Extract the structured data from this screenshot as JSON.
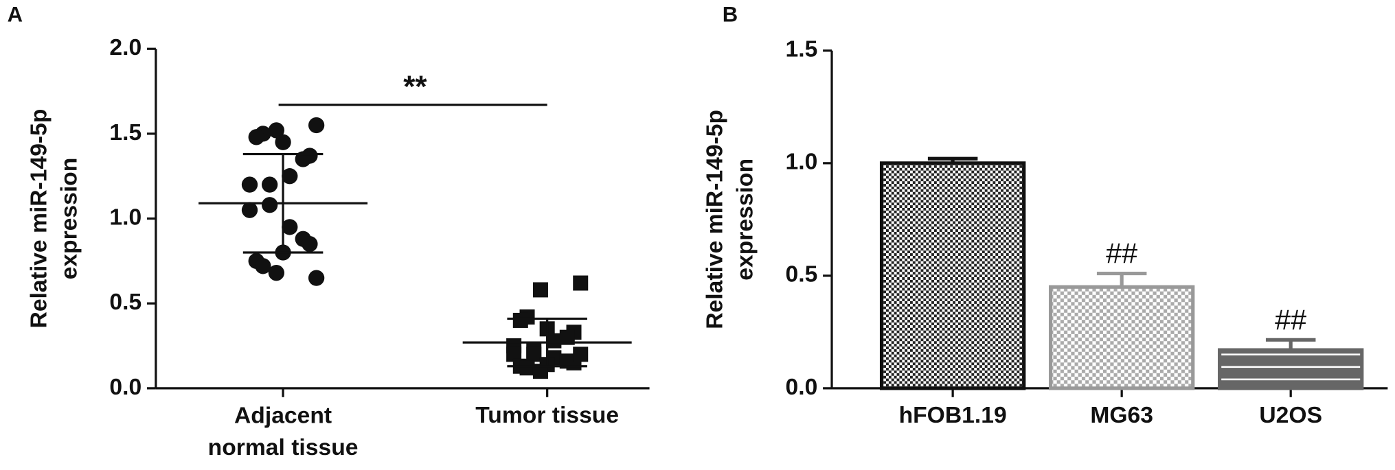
{
  "chart_data": [
    {
      "type": "dot",
      "panel": "A",
      "ylabel": [
        "Relative miR-149-5p",
        "expression"
      ],
      "categories": [
        "Adjacent normal tissue",
        "Tumor tissue"
      ],
      "markers": [
        "circle",
        "square"
      ],
      "color": "#111111",
      "groups": [
        {
          "values": [
            1.55,
            1.52,
            1.5,
            1.48,
            1.45,
            1.37,
            1.35,
            1.25,
            1.2,
            1.2,
            1.08,
            1.05,
            0.95,
            0.88,
            0.85,
            0.8,
            0.75,
            0.72,
            0.68,
            0.65
          ],
          "mean": 1.09,
          "sd_upper": 1.38,
          "sd_lower": 0.8
        },
        {
          "values": [
            0.62,
            0.58,
            0.42,
            0.4,
            0.35,
            0.33,
            0.3,
            0.28,
            0.25,
            0.22,
            0.2,
            0.2,
            0.18,
            0.16,
            0.15,
            0.14,
            0.13,
            0.12,
            0.1,
            0.2
          ],
          "mean": 0.27,
          "sd_upper": 0.41,
          "sd_lower": 0.13
        }
      ],
      "significance": "**",
      "ylim": [
        0,
        2.0
      ],
      "yticks": [
        {
          "value": 0,
          "label": "0.0"
        },
        0.5,
        {
          "value": 1.0,
          "label": "1.0"
        },
        1.5,
        {
          "value": 2.0,
          "label": "2.0"
        }
      ]
    },
    {
      "type": "bar",
      "panel": "B",
      "ylabel": [
        "Relative miR-149-5p",
        "expression"
      ],
      "categories": [
        "hFOB1.19",
        "MG63",
        "U2OS"
      ],
      "values": [
        1.0,
        0.45,
        0.17
      ],
      "errors": [
        0.02,
        0.06,
        0.045
      ],
      "colors": [
        "#111111",
        "#999999",
        "#666666"
      ],
      "significance": [
        null,
        "##",
        "##"
      ],
      "ylim": [
        0,
        1.5
      ],
      "yticks": [
        {
          "value": 0,
          "label": "0.0"
        },
        0.5,
        {
          "value": 1.0,
          "label": "1.0"
        },
        1.5
      ]
    }
  ]
}
